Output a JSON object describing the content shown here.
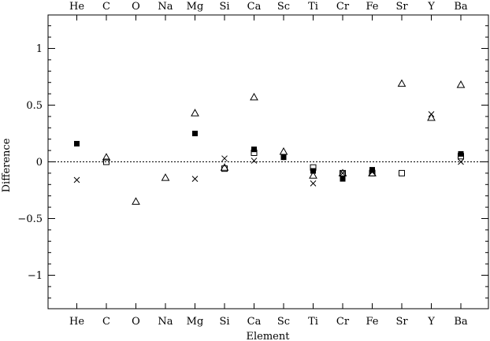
{
  "chart_data": {
    "type": "scatter",
    "title": "",
    "xlabel": "Element",
    "ylabel": "Difference",
    "categories": [
      "He",
      "C",
      "O",
      "Na",
      "Mg",
      "Si",
      "Ca",
      "Sc",
      "Ti",
      "Cr",
      "Fe",
      "Sr",
      "Y",
      "Ba"
    ],
    "ylim": [
      -1.3,
      1.3
    ],
    "yticks": [
      -1,
      -0.5,
      0,
      0.5,
      1
    ],
    "ytick_labels": [
      "−1",
      "−0.5",
      "0",
      "0.5",
      "1"
    ],
    "zero_line": {
      "y": 0,
      "style": "dotted"
    },
    "grid": false,
    "series": [
      {
        "marker": "filled-square",
        "points": [
          {
            "x": "He",
            "y": 0.16
          },
          {
            "x": "Mg",
            "y": 0.25
          },
          {
            "x": "Ca",
            "y": 0.11
          },
          {
            "x": "Sc",
            "y": 0.04
          },
          {
            "x": "Ti",
            "y": -0.08
          },
          {
            "x": "Cr",
            "y": -0.15
          },
          {
            "x": "Fe",
            "y": -0.07
          },
          {
            "x": "Ba",
            "y": 0.07
          }
        ]
      },
      {
        "marker": "open-square",
        "points": [
          {
            "x": "C",
            "y": 0.0
          },
          {
            "x": "Si",
            "y": -0.06
          },
          {
            "x": "Ca",
            "y": 0.08
          },
          {
            "x": "Ti",
            "y": -0.05
          },
          {
            "x": "Cr",
            "y": -0.1
          },
          {
            "x": "Fe",
            "y": -0.1
          },
          {
            "x": "Sr",
            "y": -0.1
          },
          {
            "x": "Ba",
            "y": 0.05
          }
        ]
      },
      {
        "marker": "open-triangle",
        "points": [
          {
            "x": "C",
            "y": 0.04
          },
          {
            "x": "O",
            "y": -0.35
          },
          {
            "x": "Na",
            "y": -0.14
          },
          {
            "x": "Mg",
            "y": 0.43
          },
          {
            "x": "Si",
            "y": -0.05
          },
          {
            "x": "Ca",
            "y": 0.57
          },
          {
            "x": "Sc",
            "y": 0.09
          },
          {
            "x": "Ti",
            "y": -0.12
          },
          {
            "x": "Cr",
            "y": -0.1
          },
          {
            "x": "Fe",
            "y": -0.1
          },
          {
            "x": "Sr",
            "y": 0.69
          },
          {
            "x": "Y",
            "y": 0.39
          },
          {
            "x": "Ba",
            "y": 0.68
          }
        ]
      },
      {
        "marker": "cross",
        "points": [
          {
            "x": "He",
            "y": -0.16
          },
          {
            "x": "Mg",
            "y": -0.15
          },
          {
            "x": "Si",
            "y": 0.03
          },
          {
            "x": "Ca",
            "y": 0.01
          },
          {
            "x": "Ti",
            "y": -0.19
          },
          {
            "x": "Cr",
            "y": -0.1
          },
          {
            "x": "Fe",
            "y": -0.09
          },
          {
            "x": "Y",
            "y": 0.42
          },
          {
            "x": "Ba",
            "y": 0.0
          }
        ]
      }
    ]
  }
}
